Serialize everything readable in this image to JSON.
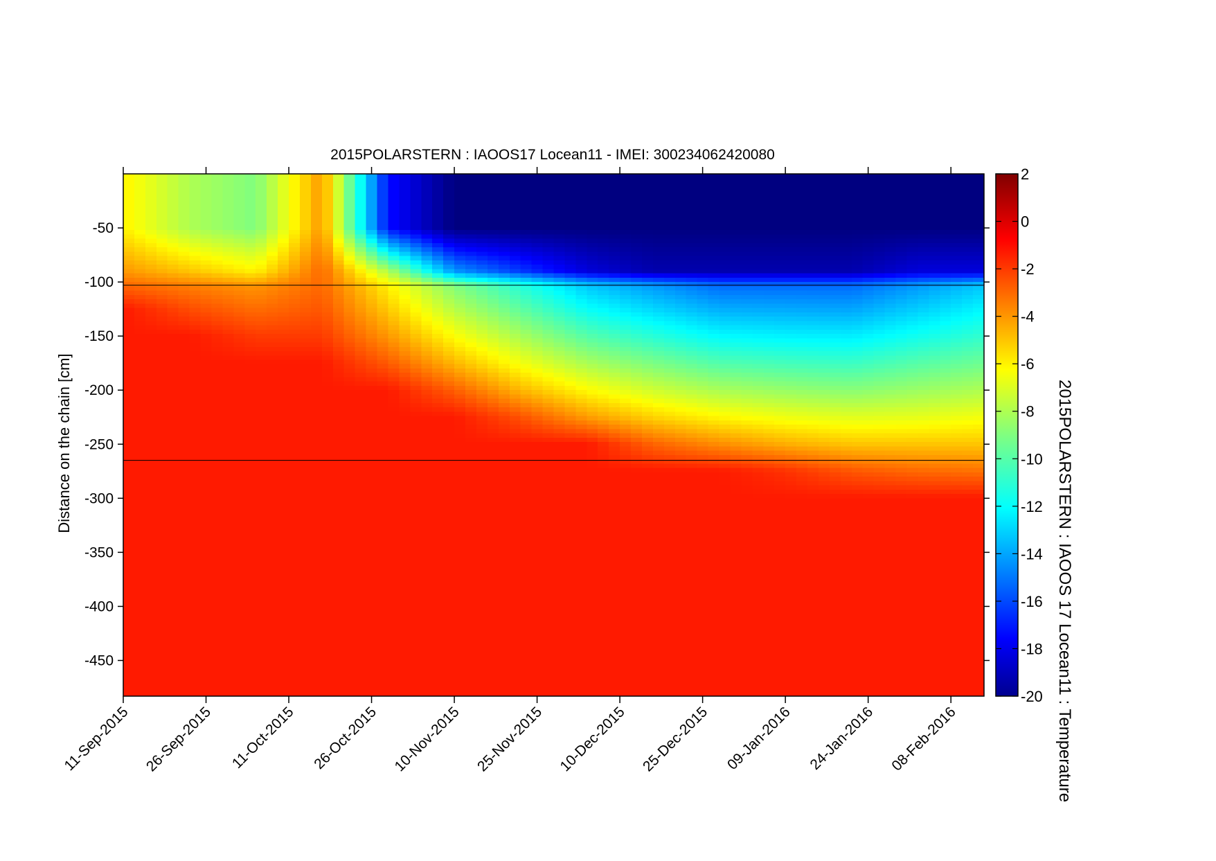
{
  "chart_data": {
    "type": "heatmap",
    "title": "2015POLARSTERN : IAOOS17  Locean11 - IMEI: 300234062420080",
    "ylabel": "Distance on the chain [cm]",
    "colorbar_label": "2015POLARSTERN : IAOOS 17  Locean11 : Temperature",
    "colormap": "jet",
    "clim": [
      -20,
      2
    ],
    "colorbar_ticks": [
      2,
      0,
      -2,
      -4,
      -6,
      -8,
      -10,
      -12,
      -14,
      -16,
      -18,
      -20
    ],
    "x_start_date": "11-Sep-2015",
    "x_units": "days since 11-Sep-2015",
    "xlim": [
      0,
      156
    ],
    "x_ticks": [
      0,
      15,
      30,
      45,
      60,
      75,
      90,
      105,
      120,
      135,
      150
    ],
    "x_tick_labels": [
      "11-Sep-2015",
      "26-Sep-2015",
      "11-Oct-2015",
      "26-Oct-2015",
      "10-Nov-2015",
      "25-Nov-2015",
      "10-Dec-2015",
      "25-Dec-2015",
      "09-Jan-2016",
      "24-Jan-2016",
      "08-Feb-2016"
    ],
    "ylim": [
      -483,
      0
    ],
    "y_ticks": [
      -50,
      -100,
      -150,
      -200,
      -250,
      -300,
      -350,
      -400,
      -450
    ],
    "reference_lines": [
      -103,
      -265
    ],
    "x": [
      0,
      12,
      24,
      36,
      48,
      60,
      72,
      84,
      96,
      108,
      120,
      132,
      144,
      156
    ],
    "y": [
      0,
      -50,
      -90,
      -103,
      -125,
      -150,
      -175,
      -200,
      -225,
      -250,
      -275,
      -300,
      -483
    ],
    "z": [
      [
        -6,
        -8,
        -9,
        -4,
        -17,
        -20,
        -20,
        -20,
        -20,
        -20,
        -20,
        -20,
        -20,
        -20
      ],
      [
        -6,
        -8,
        -9,
        -4,
        -17,
        -20,
        -20,
        -20,
        -20,
        -20,
        -20,
        -20,
        -20,
        -20
      ],
      [
        -4,
        -5,
        -6,
        -3,
        -8,
        -14,
        -16,
        -18,
        -19,
        -19,
        -19,
        -19,
        -18,
        -18
      ],
      [
        -3,
        -3.5,
        -4,
        -3,
        -6,
        -9,
        -11,
        -13,
        -14,
        -15,
        -15,
        -15,
        -14,
        -13
      ],
      [
        -1.3,
        -2.4,
        -3.1,
        -2.6,
        -5.1,
        -7.8,
        -9.7,
        -11.6,
        -12.6,
        -13.5,
        -13.6,
        -13.7,
        -12.8,
        -11.9
      ],
      [
        -1.3,
        -1.3,
        -2.0,
        -2.0,
        -4.0,
        -6.3,
        -8.1,
        -9.9,
        -10.9,
        -11.8,
        -12.0,
        -12.1,
        -11.4,
        -10.7
      ],
      [
        -1.3,
        -1.3,
        -1.3,
        -1.3,
        -2.7,
        -4.7,
        -6.5,
        -8.1,
        -9.1,
        -10.0,
        -10.3,
        -10.5,
        -9.9,
        -9.4
      ],
      [
        -1.3,
        -1.3,
        -1.3,
        -1.3,
        -1.3,
        -2.8,
        -4.7,
        -6.2,
        -7.3,
        -8.1,
        -8.5,
        -8.8,
        -8.4,
        -8.0
      ],
      [
        -1.3,
        -1.3,
        -1.3,
        -1.3,
        -1.3,
        -1.3,
        -2.5,
        -4.1,
        -5.3,
        -6.1,
        -6.6,
        -6.9,
        -6.8,
        -6.5
      ],
      [
        -1.3,
        -1.3,
        -1.3,
        -1.3,
        -1.3,
        -1.3,
        -1.3,
        -1.3,
        -2.9,
        -3.8,
        -4.5,
        -5.0,
        -5.0,
        -5.0
      ],
      [
        -1.3,
        -1.3,
        -1.3,
        -1.3,
        -1.3,
        -1.3,
        -1.3,
        -1.3,
        -1.3,
        -1.3,
        -1.8,
        -2.6,
        -3.0,
        -3.2
      ],
      [
        -1.3,
        -1.3,
        -1.3,
        -1.3,
        -1.3,
        -1.3,
        -1.3,
        -1.3,
        -1.3,
        -1.3,
        -1.3,
        -1.3,
        -1.3,
        -1.3
      ],
      [
        -1.3,
        -1.3,
        -1.3,
        -1.3,
        -1.3,
        -1.3,
        -1.3,
        -1.3,
        -1.3,
        -1.3,
        -1.3,
        -1.3,
        -1.3,
        -1.3
      ]
    ]
  }
}
